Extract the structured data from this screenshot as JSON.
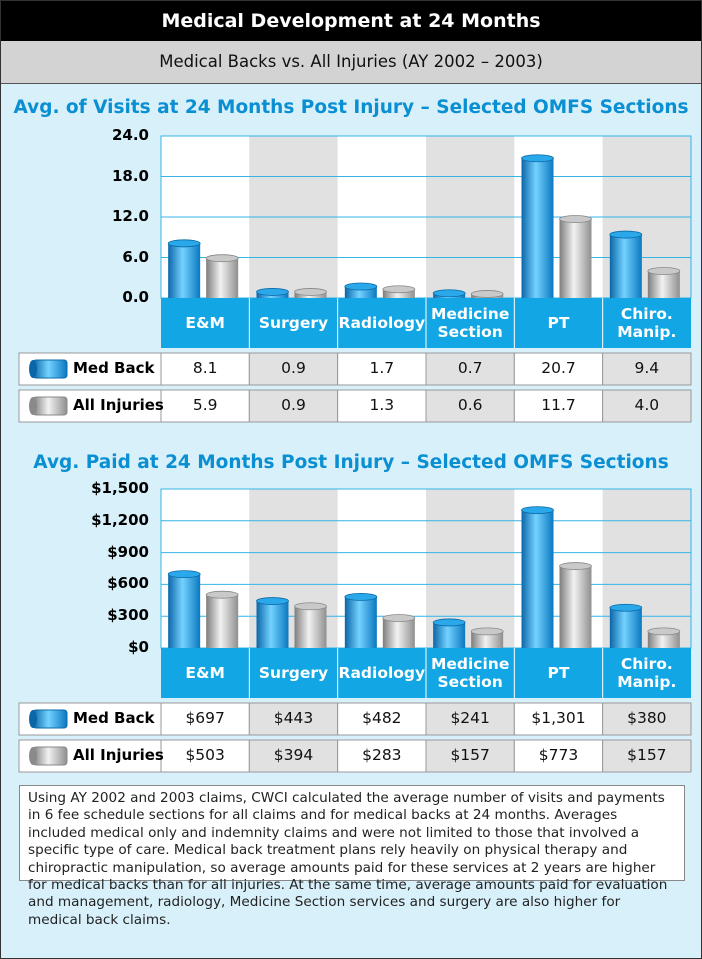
{
  "header": {
    "title": "Medical Development at 24 Months",
    "subtitle": "Medical Backs vs. All Injuries (AY 2002 – 2003)"
  },
  "chart_data": [
    {
      "type": "bar",
      "title": "Avg. of Visits at 24 Months Post Injury –  Selected OMFS Sections",
      "categories": [
        "E&M",
        "Surgery",
        "Radiology",
        "Medicine Section",
        "PT",
        "Chiro. Manip."
      ],
      "series": [
        {
          "name": "Med Back",
          "color": "#1a9be0",
          "values": [
            8.1,
            0.9,
            1.7,
            0.7,
            20.7,
            9.4
          ]
        },
        {
          "name": "All Injuries",
          "color": "#b5b5b5",
          "values": [
            5.9,
            0.9,
            1.3,
            0.6,
            11.7,
            4.0
          ],
          "value_labels": [
            "5.9",
            "0.9",
            "1.3",
            "0.6",
            "11.7",
            "4.0"
          ]
        }
      ],
      "ylim": [
        0,
        24
      ],
      "yticks": [
        {
          "value": 0,
          "label": "0.0"
        },
        {
          "value": 6,
          "label": "6.0"
        },
        {
          "value": 12,
          "label": "12.0"
        },
        {
          "value": 18,
          "label": "18.0"
        },
        {
          "value": 24,
          "label": "24.0"
        }
      ],
      "grid": true
    },
    {
      "type": "bar",
      "title": "Avg. Paid at 24 Months Post Injury – Selected OMFS Sections",
      "categories": [
        "E&M",
        "Surgery",
        "Radiology",
        "Medicine Section",
        "PT",
        "Chiro. Manip."
      ],
      "series": [
        {
          "name": "Med Back",
          "color": "#1a9be0",
          "values": [
            697,
            443,
            482,
            241,
            1301,
            380
          ],
          "value_labels": [
            "$697",
            "$443",
            "$482",
            "$241",
            "$1,301",
            "$380"
          ]
        },
        {
          "name": "All Injuries",
          "color": "#b5b5b5",
          "values": [
            503,
            394,
            283,
            157,
            773,
            157
          ],
          "value_labels": [
            "$503",
            "$394",
            "$283",
            "$157",
            "$773",
            "$157"
          ]
        }
      ],
      "ylim": [
        0,
        1500
      ],
      "yticks": [
        {
          "value": 0,
          "label": "$0"
        },
        {
          "value": 300,
          "label": "$300"
        },
        {
          "value": 600,
          "label": "$600"
        },
        {
          "value": 900,
          "label": "$900"
        },
        {
          "value": 1200,
          "label": "$1,200"
        },
        {
          "value": 1500,
          "label": "$1,500"
        }
      ],
      "grid": true
    }
  ],
  "note": "Using AY 2002 and 2003 claims, CWCI calculated the average number of visits and payments in 6 fee schedule sections for all claims and for medical backs at 24 months. Averages included medical only and indemnity claims and were not limited to those that involved a specific type of care. Medical back treatment plans rely heavily on physical therapy and chiropractic manipulation, so average amounts paid for these services at 2 years are higher for medical backs than for all injuries. At the same time, average amounts paid for evaluation and management, radiology, Medicine Section services and surgery are also higher for medical back claims."
}
